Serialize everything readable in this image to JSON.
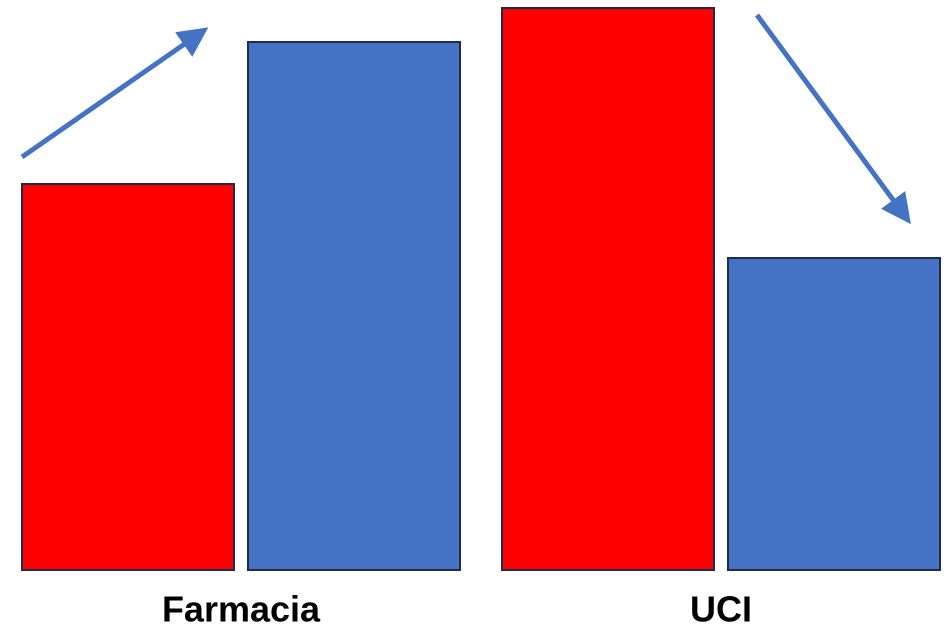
{
  "chart_data": {
    "type": "bar",
    "categories": [
      "Farmacia",
      "UCI"
    ],
    "series": [
      {
        "color": "#ff0000",
        "values": [
          386,
          562
        ]
      },
      {
        "color": "#4472c4",
        "values": [
          528,
          312
        ]
      }
    ]
  }
}
